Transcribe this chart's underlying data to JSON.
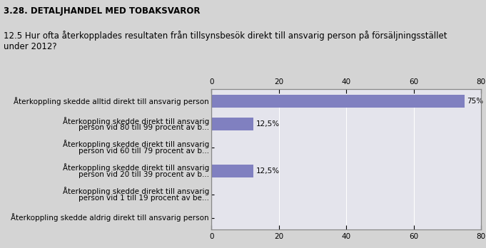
{
  "title1": "3.28. DETALJHANDEL MED TOBAKSVAROR",
  "title2": "12.5 Hur ofta återkopplades resultaten från tillsynsbesök direkt till ansvarig person på försäljningsstället\nunder 2012?",
  "categories": [
    "Återkoppling skedde alltid direkt till ansvarig person",
    "Återkoppling skedde direkt till ansvarig\nperson vid 80 till 99 procent av b...",
    "Återkoppling skedde direkt till ansvarig\nperson vid 60 till 79 procent av b...",
    "Återkoppling skedde direkt till ansvarig\nperson vid 20 till 39 procent av b...",
    "Återkoppling skedde direkt till ansvarig\nperson vid 1 till 19 procent av be...",
    "Återkoppling skedde aldrig direkt till ansvarig person"
  ],
  "values": [
    75,
    12.5,
    0,
    12.5,
    0,
    0
  ],
  "bar_color": "#8080c0",
  "background_color": "#d4d4d4",
  "plot_bg_color": "#e4e4ec",
  "xlim": [
    0,
    80
  ],
  "xticks": [
    0,
    20,
    40,
    60,
    80
  ],
  "labels": [
    "75%",
    "12,5%",
    "",
    "12,5%",
    "",
    ""
  ],
  "title1_fontsize": 8.5,
  "title2_fontsize": 8.5,
  "tick_fontsize": 7.5,
  "label_fontsize": 7.5,
  "cat_fontsize": 7.5
}
